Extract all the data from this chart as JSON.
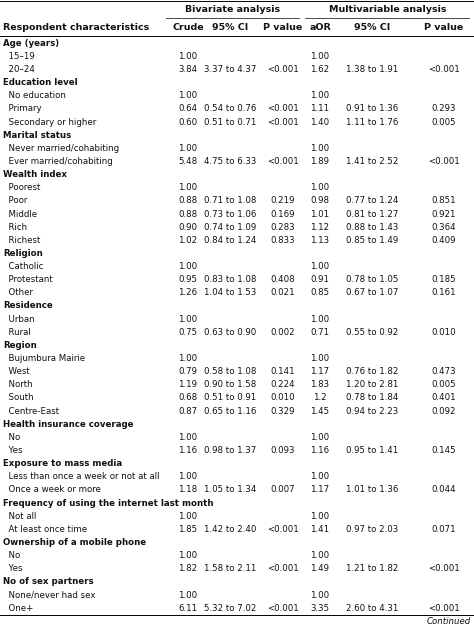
{
  "bivariate_header": "Bivariate analysis",
  "multivariable_header": "Multivariable analysis",
  "col_headers": [
    "Respondent characteristics",
    "Crude",
    "95% CI",
    "P value",
    "aOR",
    "95% CI",
    "P value"
  ],
  "rows": [
    {
      "label": "Age (years)",
      "indent": 0,
      "bold": true,
      "crude": "",
      "ci1": "",
      "pval1": "",
      "aor": "",
      "ci2": "",
      "pval2": ""
    },
    {
      "label": "  15–19",
      "indent": 0,
      "bold": false,
      "crude": "1.00",
      "ci1": "",
      "pval1": "",
      "aor": "1.00",
      "ci2": "",
      "pval2": ""
    },
    {
      "label": "  20–24",
      "indent": 0,
      "bold": false,
      "crude": "3.84",
      "ci1": "3.37 to 4.37",
      "pval1": "<0.001",
      "aor": "1.62",
      "ci2": "1.38 to 1.91",
      "pval2": "<0.001"
    },
    {
      "label": "Education level",
      "indent": 0,
      "bold": true,
      "crude": "",
      "ci1": "",
      "pval1": "",
      "aor": "",
      "ci2": "",
      "pval2": ""
    },
    {
      "label": "  No education",
      "indent": 0,
      "bold": false,
      "crude": "1.00",
      "ci1": "",
      "pval1": "",
      "aor": "1.00",
      "ci2": "",
      "pval2": ""
    },
    {
      "label": "  Primary",
      "indent": 0,
      "bold": false,
      "crude": "0.64",
      "ci1": "0.54 to 0.76",
      "pval1": "<0.001",
      "aor": "1.11",
      "ci2": "0.91 to 1.36",
      "pval2": "0.293"
    },
    {
      "label": "  Secondary or higher",
      "indent": 0,
      "bold": false,
      "crude": "0.60",
      "ci1": "0.51 to 0.71",
      "pval1": "<0.001",
      "aor": "1.40",
      "ci2": "1.11 to 1.76",
      "pval2": "0.005"
    },
    {
      "label": "Marital status",
      "indent": 0,
      "bold": true,
      "crude": "",
      "ci1": "",
      "pval1": "",
      "aor": "",
      "ci2": "",
      "pval2": ""
    },
    {
      "label": "  Never married/cohabiting",
      "indent": 0,
      "bold": false,
      "crude": "1.00",
      "ci1": "",
      "pval1": "",
      "aor": "1.00",
      "ci2": "",
      "pval2": ""
    },
    {
      "label": "  Ever married/cohabiting",
      "indent": 0,
      "bold": false,
      "crude": "5.48",
      "ci1": "4.75 to 6.33",
      "pval1": "<0.001",
      "aor": "1.89",
      "ci2": "1.41 to 2.52",
      "pval2": "<0.001"
    },
    {
      "label": "Wealth index",
      "indent": 0,
      "bold": true,
      "crude": "",
      "ci1": "",
      "pval1": "",
      "aor": "",
      "ci2": "",
      "pval2": ""
    },
    {
      "label": "  Poorest",
      "indent": 0,
      "bold": false,
      "crude": "1.00",
      "ci1": "",
      "pval1": "",
      "aor": "1.00",
      "ci2": "",
      "pval2": ""
    },
    {
      "label": "  Poor",
      "indent": 0,
      "bold": false,
      "crude": "0.88",
      "ci1": "0.71 to 1.08",
      "pval1": "0.219",
      "aor": "0.98",
      "ci2": "0.77 to 1.24",
      "pval2": "0.851"
    },
    {
      "label": "  Middle",
      "indent": 0,
      "bold": false,
      "crude": "0.88",
      "ci1": "0.73 to 1.06",
      "pval1": "0.169",
      "aor": "1.01",
      "ci2": "0.81 to 1.27",
      "pval2": "0.921"
    },
    {
      "label": "  Rich",
      "indent": 0,
      "bold": false,
      "crude": "0.90",
      "ci1": "0.74 to 1.09",
      "pval1": "0.283",
      "aor": "1.12",
      "ci2": "0.88 to 1.43",
      "pval2": "0.364"
    },
    {
      "label": "  Richest",
      "indent": 0,
      "bold": false,
      "crude": "1.02",
      "ci1": "0.84 to 1.24",
      "pval1": "0.833",
      "aor": "1.13",
      "ci2": "0.85 to 1.49",
      "pval2": "0.409"
    },
    {
      "label": "Religion",
      "indent": 0,
      "bold": true,
      "crude": "",
      "ci1": "",
      "pval1": "",
      "aor": "",
      "ci2": "",
      "pval2": ""
    },
    {
      "label": "  Catholic",
      "indent": 0,
      "bold": false,
      "crude": "1.00",
      "ci1": "",
      "pval1": "",
      "aor": "1.00",
      "ci2": "",
      "pval2": ""
    },
    {
      "label": "  Protestant",
      "indent": 0,
      "bold": false,
      "crude": "0.95",
      "ci1": "0.83 to 1.08",
      "pval1": "0.408",
      "aor": "0.91",
      "ci2": "0.78 to 1.05",
      "pval2": "0.185"
    },
    {
      "label": "  Other",
      "indent": 0,
      "bold": false,
      "crude": "1.26",
      "ci1": "1.04 to 1.53",
      "pval1": "0.021",
      "aor": "0.85",
      "ci2": "0.67 to 1.07",
      "pval2": "0.161"
    },
    {
      "label": "Residence",
      "indent": 0,
      "bold": true,
      "crude": "",
      "ci1": "",
      "pval1": "",
      "aor": "",
      "ci2": "",
      "pval2": ""
    },
    {
      "label": "  Urban",
      "indent": 0,
      "bold": false,
      "crude": "1.00",
      "ci1": "",
      "pval1": "",
      "aor": "1.00",
      "ci2": "",
      "pval2": ""
    },
    {
      "label": "  Rural",
      "indent": 0,
      "bold": false,
      "crude": "0.75",
      "ci1": "0.63 to 0.90",
      "pval1": "0.002",
      "aor": "0.71",
      "ci2": "0.55 to 0.92",
      "pval2": "0.010"
    },
    {
      "label": "Region",
      "indent": 0,
      "bold": true,
      "crude": "",
      "ci1": "",
      "pval1": "",
      "aor": "",
      "ci2": "",
      "pval2": ""
    },
    {
      "label": "  Bujumbura Mairie",
      "indent": 0,
      "bold": false,
      "crude": "1.00",
      "ci1": "",
      "pval1": "",
      "aor": "1.00",
      "ci2": "",
      "pval2": ""
    },
    {
      "label": "  West",
      "indent": 0,
      "bold": false,
      "crude": "0.79",
      "ci1": "0.58 to 1.08",
      "pval1": "0.141",
      "aor": "1.17",
      "ci2": "0.76 to 1.82",
      "pval2": "0.473"
    },
    {
      "label": "  North",
      "indent": 0,
      "bold": false,
      "crude": "1.19",
      "ci1": "0.90 to 1.58",
      "pval1": "0.224",
      "aor": "1.83",
      "ci2": "1.20 to 2.81",
      "pval2": "0.005"
    },
    {
      "label": "  South",
      "indent": 0,
      "bold": false,
      "crude": "0.68",
      "ci1": "0.51 to 0.91",
      "pval1": "0.010",
      "aor": "1.2",
      "ci2": "0.78 to 1.84",
      "pval2": "0.401"
    },
    {
      "label": "  Centre-East",
      "indent": 0,
      "bold": false,
      "crude": "0.87",
      "ci1": "0.65 to 1.16",
      "pval1": "0.329",
      "aor": "1.45",
      "ci2": "0.94 to 2.23",
      "pval2": "0.092"
    },
    {
      "label": "Health insurance coverage",
      "indent": 0,
      "bold": true,
      "crude": "",
      "ci1": "",
      "pval1": "",
      "aor": "",
      "ci2": "",
      "pval2": ""
    },
    {
      "label": "  No",
      "indent": 0,
      "bold": false,
      "crude": "1.00",
      "ci1": "",
      "pval1": "",
      "aor": "1.00",
      "ci2": "",
      "pval2": ""
    },
    {
      "label": "  Yes",
      "indent": 0,
      "bold": false,
      "crude": "1.16",
      "ci1": "0.98 to 1.37",
      "pval1": "0.093",
      "aor": "1.16",
      "ci2": "0.95 to 1.41",
      "pval2": "0.145"
    },
    {
      "label": "Exposure to mass media",
      "indent": 0,
      "bold": true,
      "crude": "",
      "ci1": "",
      "pval1": "",
      "aor": "",
      "ci2": "",
      "pval2": ""
    },
    {
      "label": "  Less than once a week or not at all",
      "indent": 0,
      "bold": false,
      "crude": "1.00",
      "ci1": "",
      "pval1": "",
      "aor": "1.00",
      "ci2": "",
      "pval2": ""
    },
    {
      "label": "  Once a week or more",
      "indent": 0,
      "bold": false,
      "crude": "1.18",
      "ci1": "1.05 to 1.34",
      "pval1": "0.007",
      "aor": "1.17",
      "ci2": "1.01 to 1.36",
      "pval2": "0.044"
    },
    {
      "label": "Frequency of using the internet last month",
      "indent": 0,
      "bold": true,
      "crude": "",
      "ci1": "",
      "pval1": "",
      "aor": "",
      "ci2": "",
      "pval2": ""
    },
    {
      "label": "  Not all",
      "indent": 0,
      "bold": false,
      "crude": "1.00",
      "ci1": "",
      "pval1": "",
      "aor": "1.00",
      "ci2": "",
      "pval2": ""
    },
    {
      "label": "  At least once time",
      "indent": 0,
      "bold": false,
      "crude": "1.85",
      "ci1": "1.42 to 2.40",
      "pval1": "<0.001",
      "aor": "1.41",
      "ci2": "0.97 to 2.03",
      "pval2": "0.071"
    },
    {
      "label": "Ownership of a mobile phone",
      "indent": 0,
      "bold": true,
      "crude": "",
      "ci1": "",
      "pval1": "",
      "aor": "",
      "ci2": "",
      "pval2": ""
    },
    {
      "label": "  No",
      "indent": 0,
      "bold": false,
      "crude": "1.00",
      "ci1": "",
      "pval1": "",
      "aor": "1.00",
      "ci2": "",
      "pval2": ""
    },
    {
      "label": "  Yes",
      "indent": 0,
      "bold": false,
      "crude": "1.82",
      "ci1": "1.58 to 2.11",
      "pval1": "<0.001",
      "aor": "1.49",
      "ci2": "1.21 to 1.82",
      "pval2": "<0.001"
    },
    {
      "label": "No of sex partners",
      "indent": 0,
      "bold": true,
      "crude": "",
      "ci1": "",
      "pval1": "",
      "aor": "",
      "ci2": "",
      "pval2": ""
    },
    {
      "label": "  None/never had sex",
      "indent": 0,
      "bold": false,
      "crude": "1.00",
      "ci1": "",
      "pval1": "",
      "aor": "1.00",
      "ci2": "",
      "pval2": ""
    },
    {
      "label": "  One+",
      "indent": 0,
      "bold": false,
      "crude": "6.11",
      "ci1": "5.32 to 7.02",
      "pval1": "<0.001",
      "aor": "3.35",
      "ci2": "2.60 to 4.31",
      "pval2": "<0.001"
    }
  ],
  "text_color": "#111111",
  "font_size": 6.2,
  "header_font_size": 6.8
}
